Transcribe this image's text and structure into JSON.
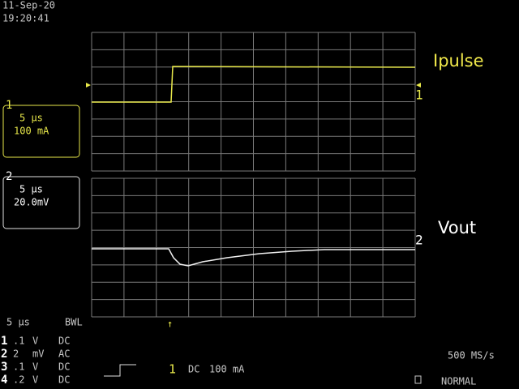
{
  "header": {
    "date": "11-Sep-20",
    "time": "19:20:41"
  },
  "traces": [
    {
      "channel": "1",
      "label": "Ipulse"
    },
    {
      "channel": "2",
      "label": "Vout"
    }
  ],
  "channel_boxes": [
    {
      "channel": "1",
      "timebase": "5 µs",
      "scale": "100 mA"
    },
    {
      "channel": "2",
      "timebase": "5 µs",
      "scale": "20.0mV"
    }
  ],
  "status": {
    "timebase": "5 µs",
    "bwl": "BWL",
    "rows": [
      [
        "1",
        ".1",
        "V",
        "DC"
      ],
      [
        "2",
        "2",
        "mV",
        "AC"
      ],
      [
        "3",
        ".1",
        "V",
        "DC"
      ],
      [
        "4",
        ".2",
        "V",
        "DC"
      ]
    ],
    "trigger": {
      "channel": "1",
      "coupling": "DC",
      "level": "100 mA"
    },
    "sample_rate": "500 MS/s",
    "mode": "NORMAL"
  }
}
